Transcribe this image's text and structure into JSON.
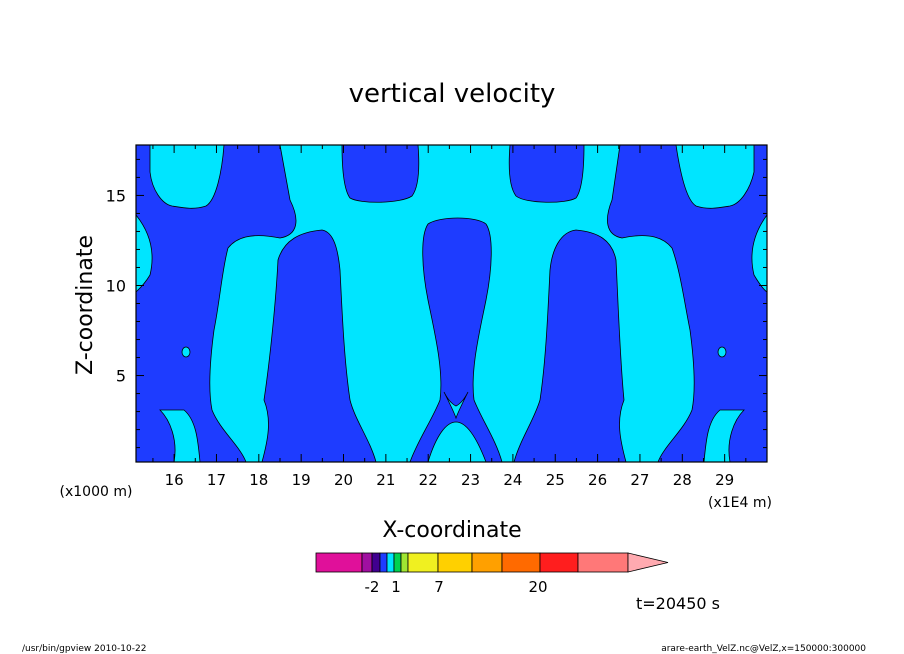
{
  "chart_data": {
    "type": "heatmap",
    "title": "vertical velocity",
    "xlabel": "X-coordinate",
    "ylabel": "Z-coordinate",
    "x_units_label": "(x1E4 m)",
    "y_units_label": "(x1000 m)",
    "x_range": [
      15.1,
      30.0
    ],
    "y_range": [
      0.2,
      17.8
    ],
    "x_ticks": [
      16,
      17,
      18,
      19,
      20,
      21,
      22,
      23,
      24,
      25,
      26,
      27,
      28,
      29
    ],
    "y_ticks": [
      5,
      10,
      15
    ],
    "time_label": "t=20450 s",
    "colors": {
      "negative": "#1e3cff",
      "positive": "#00e5ff",
      "contour": "#000000"
    },
    "colorbar": {
      "tick_labels": [
        "-2",
        "1",
        "7",
        "20"
      ],
      "colors": [
        "#e0109a",
        "#a00fa0",
        "#400090",
        "#1e3cff",
        "#00e5ff",
        "#00d250",
        "#a0e632",
        "#f0f020",
        "#ffd000",
        "#ffa000",
        "#ff6a00",
        "#ff1e1e",
        "#ff7878",
        "#ffaab0"
      ]
    }
  },
  "footer": {
    "left": "/usr/bin/gpview   2010-10-22",
    "right": "arare-earth_VelZ.nc@VelZ,x=150000:300000"
  }
}
